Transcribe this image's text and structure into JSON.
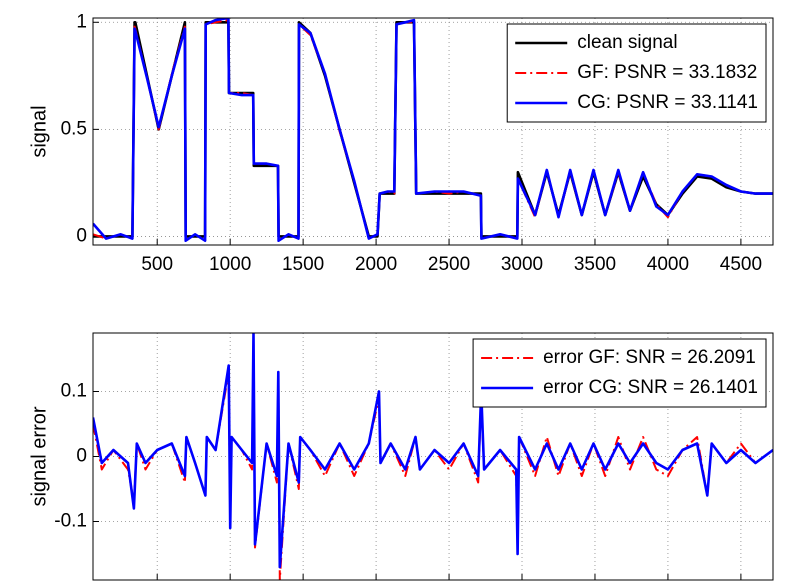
{
  "chart_data": [
    {
      "type": "line",
      "y_label": "signal",
      "legend": "upper right",
      "grid": true,
      "xlim": [
        60,
        4720
      ],
      "ylim": [
        -0.04,
        1.02
      ],
      "xticks": [
        500,
        1000,
        1500,
        2000,
        2500,
        3000,
        3500,
        4000,
        4500
      ],
      "yticks": [
        0,
        0.5,
        1
      ],
      "x": [
        60,
        150,
        250,
        330,
        345,
        350,
        430,
        510,
        600,
        690,
        695,
        760,
        828,
        832,
        900,
        988,
        992,
        1080,
        1158,
        1162,
        1250,
        1328,
        1332,
        1400,
        1468,
        1472,
        1550,
        1650,
        1750,
        1850,
        1950,
        2010,
        2025,
        2080,
        2125,
        2140,
        2200,
        2260,
        2275,
        2400,
        2500,
        2600,
        2718,
        2722,
        2850,
        2968,
        2972,
        3090,
        3170,
        3250,
        3330,
        3410,
        3490,
        3570,
        3660,
        3740,
        3830,
        3920,
        4000,
        4100,
        4200,
        4300,
        4400,
        4500,
        4600,
        4720
      ],
      "series": [
        {
          "name": "clean signal",
          "color": "#000000",
          "linestyle": "-",
          "values": [
            0,
            0,
            0,
            0,
            1,
            1,
            0.75,
            0.5,
            0.75,
            1,
            0,
            0,
            0,
            1,
            1,
            1,
            0.67,
            0.67,
            0.67,
            0.33,
            0.33,
            0.33,
            0,
            0,
            0,
            1,
            0.95,
            0.75,
            0.5,
            0.25,
            0,
            0,
            0.2,
            0.2,
            0.2,
            1,
            1,
            1,
            0.2,
            0.2,
            0.2,
            0.2,
            0.2,
            0,
            0,
            0,
            0.3,
            0.1,
            0.3,
            0.1,
            0.3,
            0.1,
            0.3,
            0.1,
            0.3,
            0.12,
            0.28,
            0.15,
            0.1,
            0.2,
            0.28,
            0.27,
            0.23,
            0.21,
            0.2,
            0.2
          ]
        },
        {
          "name": "GF: PSNR = 33.1832",
          "color": "#ff0000",
          "linestyle": "-.",
          "values": [
            0.01,
            -0.01,
            0.01,
            -0.01,
            0.98,
            0.97,
            0.74,
            0.5,
            0.76,
            0.98,
            -0.02,
            0.01,
            -0.02,
            0.99,
            1,
            1.01,
            0.67,
            0.67,
            0.66,
            0.34,
            0.34,
            0.33,
            -0.02,
            0.01,
            -0.01,
            0.99,
            0.94,
            0.76,
            0.49,
            0.26,
            -0.01,
            0.01,
            0.2,
            0.21,
            0.2,
            0.99,
            1,
            1,
            0.2,
            0.21,
            0.2,
            0.21,
            0.19,
            -0.01,
            0.01,
            -0.01,
            0.27,
            0.09,
            0.31,
            0.09,
            0.3,
            0.1,
            0.31,
            0.1,
            0.3,
            0.12,
            0.3,
            0.15,
            0.09,
            0.21,
            0.29,
            0.28,
            0.24,
            0.21,
            0.2,
            0.2
          ]
        },
        {
          "name": "CG: PSNR = 33.1141",
          "color": "#0000ff",
          "linestyle": "-",
          "values": [
            0.06,
            -0.01,
            0.01,
            -0.01,
            0.97,
            0.96,
            0.74,
            0.51,
            0.75,
            0.97,
            -0.02,
            0.01,
            -0.02,
            0.99,
            1.01,
            1.02,
            0.67,
            0.66,
            0.66,
            0.34,
            0.34,
            0.33,
            -0.02,
            0.01,
            -0.01,
            0.99,
            0.95,
            0.76,
            0.5,
            0.26,
            -0.01,
            0.01,
            0.2,
            0.21,
            0.21,
            0.99,
            1,
            1.01,
            0.2,
            0.21,
            0.21,
            0.21,
            0.19,
            -0.01,
            0.01,
            -0.01,
            0.27,
            0.1,
            0.31,
            0.09,
            0.31,
            0.1,
            0.31,
            0.1,
            0.31,
            0.12,
            0.3,
            0.14,
            0.1,
            0.21,
            0.29,
            0.28,
            0.24,
            0.21,
            0.2,
            0.2
          ]
        }
      ]
    },
    {
      "type": "line",
      "y_label": "signal error",
      "legend": "upper right",
      "grid": true,
      "xlim": [
        60,
        4720
      ],
      "ylim": [
        -0.19,
        0.19
      ],
      "xticks": [
        500,
        1000,
        1500,
        2000,
        2500,
        3000,
        3500,
        4000,
        4500
      ],
      "yticks": [
        -0.1,
        0,
        0.1
      ],
      "x": [
        60,
        120,
        200,
        300,
        340,
        360,
        420,
        500,
        600,
        690,
        700,
        760,
        830,
        840,
        900,
        990,
        1000,
        1010,
        1080,
        1150,
        1160,
        1170,
        1250,
        1320,
        1330,
        1340,
        1400,
        1470,
        1480,
        1550,
        1650,
        1750,
        1850,
        1950,
        2020,
        2030,
        2100,
        2200,
        2270,
        2300,
        2400,
        2500,
        2600,
        2700,
        2720,
        2740,
        2850,
        2960,
        2970,
        2980,
        3090,
        3170,
        3250,
        3330,
        3410,
        3490,
        3570,
        3660,
        3740,
        3830,
        3920,
        4000,
        4100,
        4200,
        4270,
        4300,
        4400,
        4500,
        4600,
        4720
      ],
      "series": [
        {
          "name": "error GF: SNR = 26.2091",
          "color": "#ff0000",
          "linestyle": "-.",
          "values": [
            0.05,
            -0.02,
            0.01,
            -0.02,
            -0.07,
            0.02,
            -0.02,
            0.01,
            0.02,
            -0.04,
            0.03,
            -0.01,
            -0.06,
            0.03,
            0.01,
            0.13,
            -0.1,
            0.03,
            0.01,
            -0.02,
            0.18,
            -0.14,
            0.02,
            -0.04,
            0.13,
            -0.19,
            0.02,
            -0.05,
            0.03,
            0.01,
            -0.03,
            0.02,
            -0.03,
            0.02,
            0.09,
            -0.01,
            0.02,
            -0.03,
            0.03,
            -0.02,
            0.01,
            -0.02,
            0.02,
            -0.04,
            0.09,
            -0.02,
            0.01,
            -0.03,
            -0.14,
            0.03,
            -0.03,
            0.03,
            -0.03,
            0.02,
            -0.03,
            0.02,
            -0.03,
            0.03,
            -0.02,
            0.03,
            -0.02,
            -0.03,
            0.01,
            0.03,
            -0.06,
            0.02,
            -0.01,
            0.02,
            -0.01,
            0.01
          ]
        },
        {
          "name": "error CG: SNR = 26.1401",
          "color": "#0000ff",
          "linestyle": "-",
          "values": [
            0.06,
            -0.01,
            0.01,
            -0.01,
            -0.08,
            0.02,
            -0.01,
            0.01,
            0.02,
            -0.03,
            0.03,
            -0.01,
            -0.06,
            0.03,
            0.01,
            0.14,
            -0.11,
            0.03,
            0.01,
            -0.01,
            0.19,
            -0.135,
            0.02,
            -0.03,
            0.13,
            -0.17,
            0.02,
            -0.04,
            0.03,
            0.01,
            -0.02,
            0.02,
            -0.02,
            0.02,
            0.1,
            -0.01,
            0.02,
            -0.02,
            0.03,
            -0.02,
            0.01,
            -0.01,
            0.02,
            -0.03,
            0.1,
            -0.02,
            0.01,
            -0.02,
            -0.15,
            0.03,
            -0.02,
            0.02,
            -0.02,
            0.02,
            -0.02,
            0.02,
            -0.02,
            0.02,
            -0.01,
            0.02,
            -0.01,
            -0.02,
            0.01,
            0.02,
            -0.06,
            0.02,
            -0.01,
            0.01,
            -0.01,
            0.01
          ]
        }
      ]
    }
  ]
}
